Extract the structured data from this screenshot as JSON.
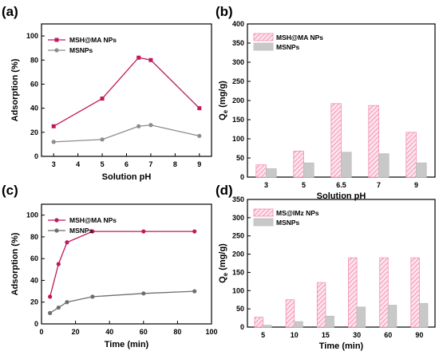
{
  "chart_data": [
    {
      "panel": "(a)",
      "type": "line",
      "xlabel": "Solution pH",
      "ylabel": "Adsorption (%)",
      "xlim": [
        2.5,
        9.5
      ],
      "ylim": [
        0,
        110
      ],
      "xticks": [
        3,
        4,
        5,
        6,
        7,
        8,
        9
      ],
      "yticks": [
        0,
        20,
        40,
        60,
        80,
        100
      ],
      "legend_position": "top-left",
      "series": [
        {
          "name": "MSH@MA NPs",
          "color": "#c2185b",
          "marker": "square",
          "x": [
            3,
            5,
            6.5,
            7,
            9
          ],
          "y": [
            25,
            48,
            82,
            80,
            40
          ]
        },
        {
          "name": "MSNPs",
          "color": "#8c8c8c",
          "marker": "circle",
          "x": [
            3,
            5,
            6.5,
            7,
            9
          ],
          "y": [
            12,
            14,
            25,
            26,
            17
          ]
        }
      ],
      "grid": false
    },
    {
      "panel": "(b)",
      "type": "bar",
      "xlabel": "Solution pH",
      "ylabel": "Qe (mg/g)",
      "ylabel_main": "Q",
      "ylabel_sub": "e",
      "ylabel_rest": " (mg/g)",
      "ylim": [
        0,
        400
      ],
      "yticks": [
        0,
        50,
        100,
        150,
        200,
        250,
        300,
        350,
        400
      ],
      "categories": [
        "3",
        "5",
        "6.5",
        "7",
        "9"
      ],
      "legend_position": "top-left",
      "series": [
        {
          "name": "MSH@MA NPs",
          "color": "#f48fb1",
          "fill": "hatch-pink",
          "values": [
            32,
            68,
            192,
            187,
            117
          ]
        },
        {
          "name": "MSNPs",
          "color": "#c8c8c8",
          "fill": "solid-grey",
          "values": [
            22,
            37,
            65,
            61,
            37
          ]
        }
      ],
      "grid": false
    },
    {
      "panel": "(c)",
      "type": "line",
      "xlabel": "Time (min)",
      "ylabel": "Adsorption (%)",
      "xlim": [
        0,
        100
      ],
      "ylim": [
        0,
        110
      ],
      "xticks": [
        0,
        20,
        40,
        60,
        80,
        100
      ],
      "yticks": [
        0,
        20,
        40,
        60,
        80,
        100
      ],
      "legend_position": "top-left",
      "series": [
        {
          "name": "MSH@MA NPs",
          "color": "#c2185b",
          "marker": "circle",
          "x": [
            5,
            10,
            15,
            30,
            60,
            90
          ],
          "y": [
            25,
            55,
            75,
            85,
            85,
            85
          ]
        },
        {
          "name": "MSNPs",
          "color": "#6e6e6e",
          "marker": "circle",
          "x": [
            5,
            10,
            15,
            30,
            60,
            90
          ],
          "y": [
            10,
            15,
            20,
            25,
            28,
            30
          ]
        }
      ],
      "grid": false
    },
    {
      "panel": "(d)",
      "type": "bar",
      "xlabel": "Time (min)",
      "ylabel": "Qe (mg/g)",
      "ylabel_main": "Q",
      "ylabel_sub": "e",
      "ylabel_rest": " (mg/g)",
      "ylim": [
        0,
        350
      ],
      "yticks": [
        0,
        50,
        100,
        150,
        200,
        250,
        300,
        350
      ],
      "categories": [
        "5",
        "10",
        "15",
        "30",
        "60",
        "90"
      ],
      "legend_position": "top-left",
      "series": [
        {
          "name": "MS@IMz NPs",
          "color": "#f48fb1",
          "fill": "hatch-pink",
          "values": [
            27,
            75,
            122,
            190,
            190,
            190
          ]
        },
        {
          "name": "MSNPs",
          "color": "#c8c8c8",
          "fill": "solid-grey",
          "values": [
            5,
            15,
            30,
            55,
            60,
            65
          ]
        }
      ],
      "grid": false
    }
  ]
}
